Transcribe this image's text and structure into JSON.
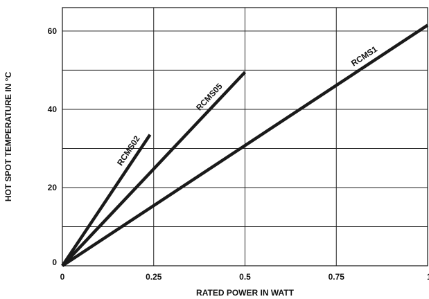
{
  "chart_data": {
    "type": "line",
    "title": "",
    "xlabel": "RATED POWER IN WATT",
    "ylabel": "HOT SPOT TEMPERATURE IN °C",
    "xlim": [
      0,
      1
    ],
    "ylim": [
      0,
      66
    ],
    "x_ticks": [
      0,
      0.25,
      0.5,
      0.75,
      1
    ],
    "x_tick_labels": [
      "0",
      "0.25",
      "0.5",
      "0.75",
      "1"
    ],
    "y_ticks": [
      0,
      20,
      40,
      60
    ],
    "y_tick_labels": [
      "0",
      "20",
      "40",
      "60"
    ],
    "grid": true,
    "series": [
      {
        "name": "RCMS02",
        "x": [
          0,
          0.24
        ],
        "y": [
          0,
          33.5
        ]
      },
      {
        "name": "RCMS05",
        "x": [
          0,
          0.5
        ],
        "y": [
          0,
          49.5
        ]
      },
      {
        "name": "RCMS1",
        "x": [
          0,
          1.0
        ],
        "y": [
          0,
          61.5
        ]
      }
    ]
  }
}
